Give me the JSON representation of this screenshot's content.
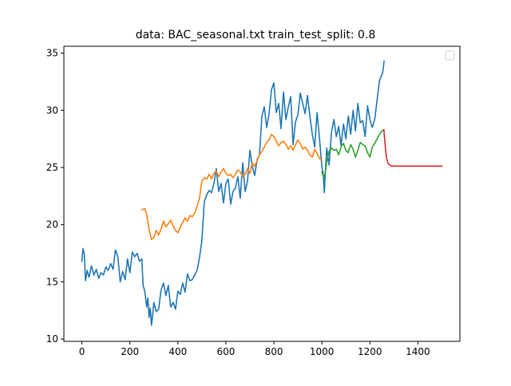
{
  "chart_data": {
    "type": "line",
    "title": "data: BAC_seasonal.txt train_test_split: 0.8",
    "xlabel": "",
    "ylabel": "",
    "xlim": [
      -75,
      1575
    ],
    "ylim": [
      9.8,
      35.6
    ],
    "xticks": [
      0,
      200,
      400,
      600,
      800,
      1000,
      1200,
      1400
    ],
    "yticks": [
      10,
      15,
      20,
      25,
      30,
      35
    ],
    "grid": false,
    "legend": {
      "position": "top-right",
      "entries": []
    },
    "series": [
      {
        "color": "#1f77b4",
        "x": [
          0,
          5,
          10,
          15,
          22,
          30,
          40,
          50,
          60,
          70,
          80,
          90,
          100,
          110,
          120,
          130,
          140,
          150,
          160,
          170,
          180,
          190,
          200,
          210,
          220,
          230,
          240,
          250,
          255,
          262,
          270,
          275,
          280,
          285,
          290,
          295,
          300,
          310,
          320,
          330,
          340,
          350,
          360,
          370,
          380,
          390,
          400,
          410,
          420,
          430,
          440,
          450,
          460,
          470,
          480,
          490,
          500,
          510,
          520,
          530,
          540,
          550,
          560,
          570,
          580,
          590,
          600,
          610,
          620,
          630,
          640,
          650,
          660,
          670,
          680,
          690,
          700,
          710,
          720,
          730,
          740,
          750,
          760,
          770,
          780,
          790,
          800,
          810,
          820,
          830,
          840,
          850,
          860,
          870,
          880,
          890,
          900,
          910,
          920,
          930,
          940,
          950,
          960,
          970,
          980,
          990,
          1000,
          1005,
          1010,
          1015,
          1020,
          1030,
          1040,
          1050,
          1060,
          1070,
          1080,
          1090,
          1100,
          1110,
          1120,
          1130,
          1140,
          1150,
          1160,
          1170,
          1180,
          1190,
          1200,
          1210,
          1220,
          1230,
          1240,
          1250,
          1255,
          1259
        ],
        "y": [
          16.8,
          17.9,
          17.4,
          15.1,
          16.0,
          15.4,
          16.4,
          15.6,
          16.1,
          15.3,
          15.8,
          15.6,
          16.3,
          16.0,
          16.6,
          16.1,
          17.8,
          17.2,
          15.0,
          15.9,
          15.2,
          17.0,
          15.8,
          17.6,
          17.2,
          17.5,
          16.8,
          17.0,
          14.7,
          14.2,
          12.8,
          13.6,
          11.9,
          12.7,
          11.2,
          12.1,
          13.2,
          12.4,
          12.6,
          14.3,
          14.9,
          13.8,
          14.7,
          12.8,
          13.2,
          12.6,
          14.2,
          13.9,
          14.9,
          14.1,
          15.7,
          15.1,
          15.2,
          15.6,
          16.0,
          17.1,
          18.6,
          22.0,
          22.6,
          23.0,
          22.8,
          23.6,
          24.9,
          22.9,
          23.6,
          21.9,
          23.6,
          24.0,
          21.8,
          22.9,
          23.2,
          24.2,
          22.3,
          25.4,
          22.9,
          23.8,
          26.5,
          25.1,
          24.3,
          25.7,
          26.1,
          29.5,
          30.3,
          28.5,
          29.7,
          31.8,
          32.4,
          29.8,
          30.6,
          28.4,
          31.6,
          29.2,
          30.3,
          31.2,
          27.0,
          29.0,
          29.6,
          31.5,
          30.6,
          29.7,
          31.3,
          29.5,
          27.9,
          26.8,
          29.8,
          27.6,
          25.0,
          24.5,
          22.8,
          24.9,
          26.7,
          25.2,
          28.1,
          29.2,
          27.7,
          28.6,
          26.9,
          28.8,
          27.5,
          29.5,
          27.9,
          30.0,
          28.2,
          30.6,
          28.9,
          29.1,
          27.7,
          30.4,
          29.2,
          28.5,
          29.2,
          30.9,
          32.6,
          33.1,
          33.5,
          34.3
        ]
      },
      {
        "color": "#ff7f0e",
        "x": [
          250,
          262,
          270,
          280,
          290,
          300,
          310,
          320,
          330,
          340,
          350,
          360,
          370,
          380,
          390,
          400,
          410,
          420,
          430,
          440,
          450,
          460,
          470,
          480,
          490,
          500,
          510,
          520,
          530,
          540,
          550,
          560,
          570,
          580,
          590,
          600,
          610,
          620,
          630,
          640,
          650,
          660,
          670,
          680,
          690,
          700,
          710,
          720,
          730,
          740,
          750,
          760,
          770,
          780,
          790,
          800,
          810,
          820,
          830,
          840,
          850,
          860,
          870,
          880,
          890,
          900,
          910,
          920,
          930,
          940,
          950,
          960,
          970,
          980,
          990,
          1000
        ],
        "y": [
          21.3,
          21.4,
          20.9,
          19.6,
          18.7,
          18.9,
          19.5,
          19.1,
          19.6,
          20.3,
          19.8,
          20.1,
          20.4,
          19.9,
          19.5,
          19.3,
          19.8,
          20.2,
          20.6,
          20.3,
          20.8,
          20.7,
          21.0,
          21.6,
          22.3,
          23.8,
          24.1,
          24.0,
          24.4,
          24.0,
          24.5,
          24.7,
          24.2,
          24.6,
          24.9,
          24.5,
          24.3,
          24.4,
          24.1,
          24.4,
          24.8,
          24.6,
          24.2,
          24.4,
          24.9,
          24.5,
          25.4,
          25.1,
          25.6,
          26.1,
          26.4,
          26.8,
          27.2,
          27.4,
          27.9,
          27.7,
          27.3,
          26.9,
          27.2,
          27.3,
          27.0,
          26.6,
          26.9,
          26.5,
          27.0,
          27.4,
          27.1,
          26.6,
          26.8,
          26.5,
          26.1,
          25.9,
          26.6,
          26.2,
          25.8,
          25.6
        ]
      },
      {
        "color": "#2ca02c",
        "x": [
          1000,
          1005,
          1010,
          1015,
          1020,
          1030,
          1040,
          1050,
          1060,
          1070,
          1080,
          1090,
          1100,
          1110,
          1120,
          1130,
          1140,
          1150,
          1160,
          1170,
          1180,
          1190,
          1200,
          1210,
          1220,
          1230,
          1240,
          1250,
          1258
        ],
        "y": [
          24.6,
          24.3,
          24.1,
          24.7,
          25.5,
          26.4,
          26.7,
          26.5,
          26.6,
          26.1,
          26.8,
          27.1,
          26.5,
          26.3,
          27.0,
          26.6,
          25.9,
          26.5,
          27.2,
          27.0,
          26.9,
          26.3,
          25.9,
          26.8,
          27.1,
          27.5,
          27.9,
          28.2,
          28.3
        ]
      },
      {
        "color": "#d62728",
        "x": [
          1258,
          1262,
          1266,
          1270,
          1275,
          1280,
          1285,
          1290,
          1300,
          1320,
          1350,
          1400,
          1450,
          1500
        ],
        "y": [
          28.3,
          27.4,
          26.4,
          25.8,
          25.4,
          25.25,
          25.18,
          25.15,
          25.13,
          25.12,
          25.12,
          25.12,
          25.12,
          25.12
        ]
      }
    ]
  }
}
